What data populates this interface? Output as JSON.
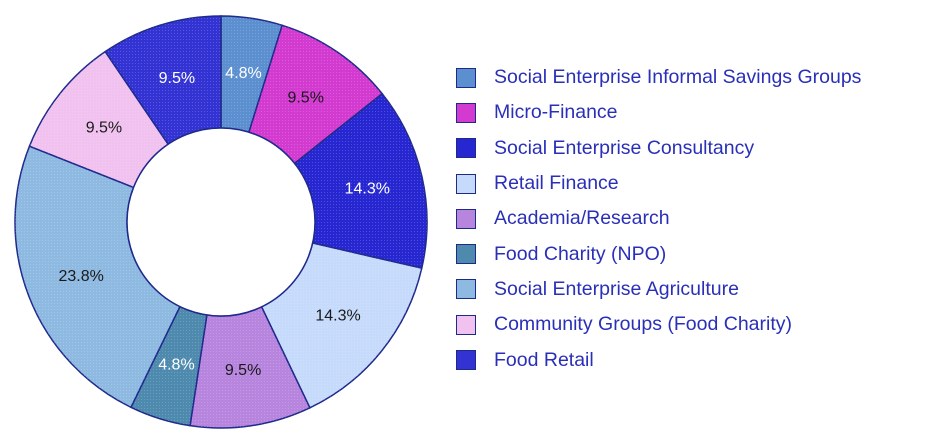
{
  "chart_data": {
    "type": "pie",
    "variant": "donut",
    "title": "",
    "legend_position": "right",
    "slices": [
      {
        "label": "Social Enterprise Informal Savings Groups",
        "value": 4.8,
        "display": "4.8%",
        "color": "#5b8fd0",
        "text_color": "#ffffff"
      },
      {
        "label": "Micro-Finance",
        "value": 9.5,
        "display": "9.5%",
        "color": "#d23ad0",
        "text_color": "#1a1a1a"
      },
      {
        "label": "Social Enterprise Consultancy",
        "value": 14.3,
        "display": "14.3%",
        "color": "#2727d2",
        "text_color": "#ffffff"
      },
      {
        "label": "Retail Finance",
        "value": 14.3,
        "display": "14.3%",
        "color": "#c6dbfb",
        "text_color": "#1a1a1a"
      },
      {
        "label": "Academia/Research",
        "value": 9.5,
        "display": "9.5%",
        "color": "#b784de",
        "text_color": "#1a1a1a"
      },
      {
        "label": "Food Charity (NPO)",
        "value": 4.8,
        "display": "4.8%",
        "color": "#4d8aad",
        "text_color": "#ffffff"
      },
      {
        "label": "Social Enterprise Agriculture",
        "value": 23.8,
        "display": "23.8%",
        "color": "#8eb9e1",
        "text_color": "#1a1a1a"
      },
      {
        "label": "Community Groups (Food Charity)",
        "value": 9.5,
        "display": "9.5%",
        "color": "#f1c1ef",
        "text_color": "#1a1a1a"
      },
      {
        "label": "Food Retail",
        "value": 9.5,
        "display": "9.5%",
        "color": "#3333d4",
        "text_color": "#ffffff"
      }
    ]
  }
}
